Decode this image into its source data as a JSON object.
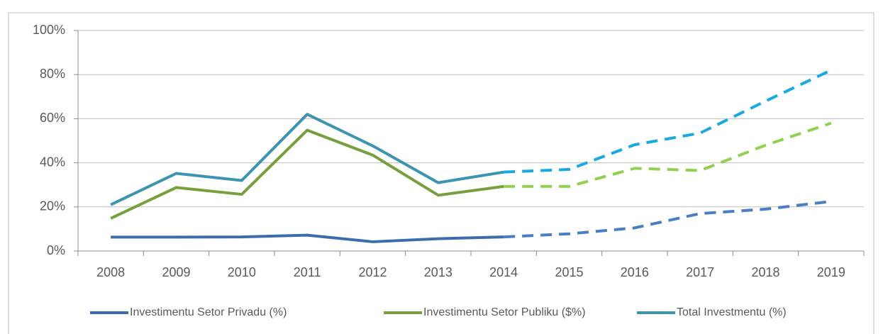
{
  "chart_data": {
    "type": "line",
    "categories": [
      "2008",
      "2009",
      "2010",
      "2011",
      "2012",
      "2013",
      "2014",
      "2015",
      "2016",
      "2017",
      "2018",
      "2019"
    ],
    "projection_start": "2014",
    "series": [
      {
        "name": "Investimentu Setor Privadu (%)",
        "color": "#3d6cae",
        "projection_color": "#4a7ec4",
        "values": [
          6.3,
          6.3,
          6.4,
          7.2,
          4.2,
          5.6,
          6.4,
          7.8,
          10.5,
          17,
          19,
          22.5
        ]
      },
      {
        "name": "Investimentu Setor Publiku ($%)",
        "color": "#77a03c",
        "projection_color": "#92d050",
        "values": [
          14.8,
          28.8,
          25.7,
          54.8,
          43.5,
          25.3,
          29.3,
          29.3,
          37.5,
          36.5,
          48,
          58
        ]
      },
      {
        "name": "Total Investmentu (%)",
        "color": "#3b95b0",
        "projection_color": "#16a9e6",
        "values": [
          21,
          35.2,
          32,
          62,
          47.7,
          31,
          35.8,
          37,
          48.2,
          53.5,
          68,
          82
        ]
      }
    ],
    "ylim": [
      0,
      100
    ],
    "yticks": [
      {
        "value": 0,
        "label": "0%"
      },
      {
        "value": 20,
        "label": "20%"
      },
      {
        "value": 40,
        "label": "40%"
      },
      {
        "value": 60,
        "label": "60%"
      },
      {
        "value": 80,
        "label": "80%"
      },
      {
        "value": 100,
        "label": "100%"
      }
    ],
    "grid": true,
    "legend": "bottom"
  }
}
